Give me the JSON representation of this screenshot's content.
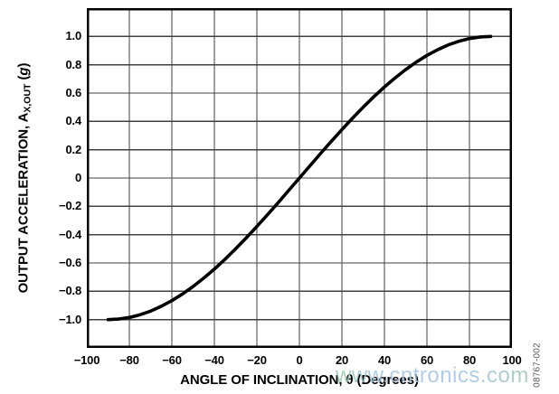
{
  "figure": {
    "code": "08767-002",
    "watermark": "www.cntronics.com",
    "background_color": "#ffffff",
    "curve_color": "#000000",
    "gridline_color": "#404040",
    "border_color": "#000000",
    "text_color": "#000000",
    "watermark_color": "#a9c6e3",
    "fig_code_color": "#58595b"
  },
  "chart_data": {
    "type": "line",
    "title": "",
    "xlabel": "ANGLE OF INCLINATION, θ (Degrees)",
    "ylabel": "OUTPUT ACCELERATION, AX,OUT (g)",
    "ylabel_parts": {
      "pre": "OUTPUT ACCELERATION, A",
      "sub": "X,OUT",
      "mid": " (",
      "g": "g",
      "close": ")"
    },
    "xlim": [
      -100,
      100
    ],
    "ylim": [
      -1.2,
      1.2
    ],
    "grid": true,
    "legend": "none",
    "x_ticks": [
      {
        "v": -100,
        "label": "−100"
      },
      {
        "v": -80,
        "label": "−80"
      },
      {
        "v": -60,
        "label": "−60"
      },
      {
        "v": -40,
        "label": "−40"
      },
      {
        "v": -20,
        "label": "−20"
      },
      {
        "v": 0,
        "label": "0"
      },
      {
        "v": 20,
        "label": "20"
      },
      {
        "v": 40,
        "label": "40"
      },
      {
        "v": 60,
        "label": "60"
      },
      {
        "v": 80,
        "label": "80"
      },
      {
        "v": 100,
        "label": "100"
      }
    ],
    "y_ticks": [
      {
        "v": 1.0,
        "label": "1.0"
      },
      {
        "v": 0.8,
        "label": "0.8"
      },
      {
        "v": 0.6,
        "label": "0.6"
      },
      {
        "v": 0.4,
        "label": "0.4"
      },
      {
        "v": 0.2,
        "label": "0.2"
      },
      {
        "v": 0,
        "label": "0"
      },
      {
        "v": -0.2,
        "label": "−0.2"
      },
      {
        "v": -0.4,
        "label": "−0.4"
      },
      {
        "v": -0.6,
        "label": "−0.6"
      },
      {
        "v": -0.8,
        "label": "−0.8"
      },
      {
        "v": -1.0,
        "label": "−1.0"
      }
    ],
    "series": [
      {
        "x": [
          -90,
          -85,
          -80,
          -75,
          -70,
          -65,
          -60,
          -55,
          -50,
          -45,
          -40,
          -35,
          -30,
          -25,
          -20,
          -15,
          -10,
          -5,
          0,
          5,
          10,
          15,
          20,
          25,
          30,
          35,
          40,
          45,
          50,
          55,
          60,
          65,
          70,
          75,
          80,
          85,
          90
        ],
        "y": [
          -1.0,
          -0.996,
          -0.985,
          -0.966,
          -0.94,
          -0.906,
          -0.866,
          -0.819,
          -0.766,
          -0.707,
          -0.643,
          -0.574,
          -0.5,
          -0.423,
          -0.342,
          -0.259,
          -0.174,
          -0.087,
          0,
          0.087,
          0.174,
          0.259,
          0.342,
          0.423,
          0.5,
          0.574,
          0.643,
          0.707,
          0.766,
          0.819,
          0.866,
          0.906,
          0.94,
          0.966,
          0.985,
          0.996,
          1.0
        ]
      }
    ]
  }
}
